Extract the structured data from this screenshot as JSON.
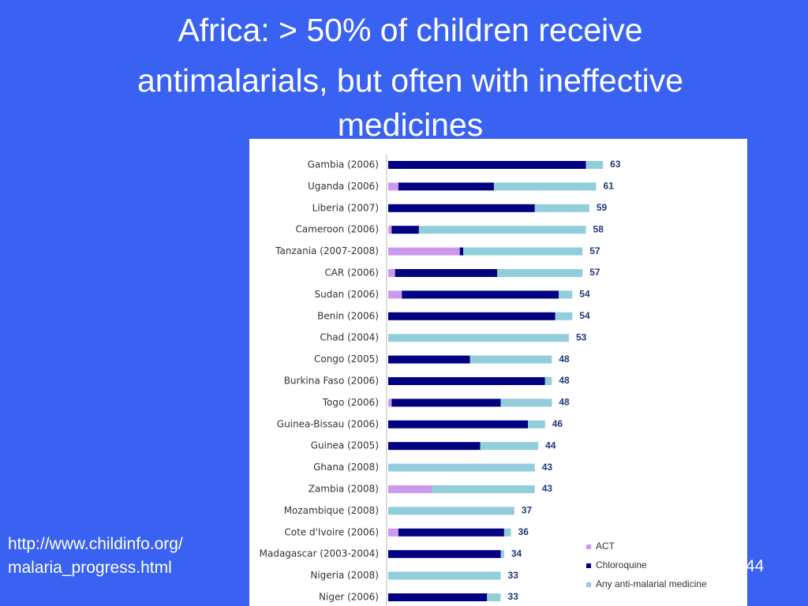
{
  "slide": {
    "title_lines": [
      "Africa: > 50% of children receive",
      "antimalarials, but often with ineffective",
      "medicines"
    ],
    "url_lines": [
      "http://www.childinfo.org/",
      "malaria_progress.html"
    ],
    "page_number": "44"
  },
  "chart_data": {
    "type": "stacked-bar-horizontal",
    "categories": [
      "Gambia (2006)",
      "Uganda (2006)",
      "Liberia (2007)",
      "Cameroon (2006)",
      "Tanzania (2007-2008)",
      "CAR (2006)",
      "Sudan (2006)",
      "Benin (2006)",
      "Chad (2004)",
      "Congo (2005)",
      "Burkina Faso (2006)",
      "Togo (2006)",
      "Guinea-Bissau (2006)",
      "Guinea (2005)",
      "Ghana (2008)",
      "Zambia (2008)",
      "Mozambique (2008)",
      "Cote d'Ivoire (2006)",
      "Madagascar (2003-2004)",
      "Nigeria (2008)",
      "Niger (2006)"
    ],
    "series": [
      {
        "name": "ACT",
        "color": "#cc99ee",
        "values": [
          0,
          3,
          0,
          1,
          21,
          2,
          4,
          0,
          0,
          0,
          0,
          1,
          0,
          0,
          0,
          13,
          0,
          3,
          0,
          0,
          0
        ]
      },
      {
        "name": "Chloroquine",
        "color": "#000080",
        "values": [
          58,
          28,
          43,
          8,
          1,
          30,
          46,
          49,
          0,
          24,
          46,
          32,
          41,
          27,
          0,
          0,
          0,
          31,
          33,
          0,
          29
        ]
      },
      {
        "name": "Any anti-malarial medicine",
        "color": "#92cddc",
        "values": [
          5,
          30,
          16,
          49,
          35,
          25,
          4,
          5,
          53,
          24,
          2,
          15,
          5,
          17,
          43,
          30,
          37,
          2,
          1,
          33,
          4
        ]
      }
    ],
    "totals": [
      63,
      61,
      59,
      58,
      57,
      57,
      54,
      54,
      53,
      48,
      48,
      48,
      46,
      44,
      43,
      43,
      37,
      36,
      34,
      33,
      33
    ]
  }
}
